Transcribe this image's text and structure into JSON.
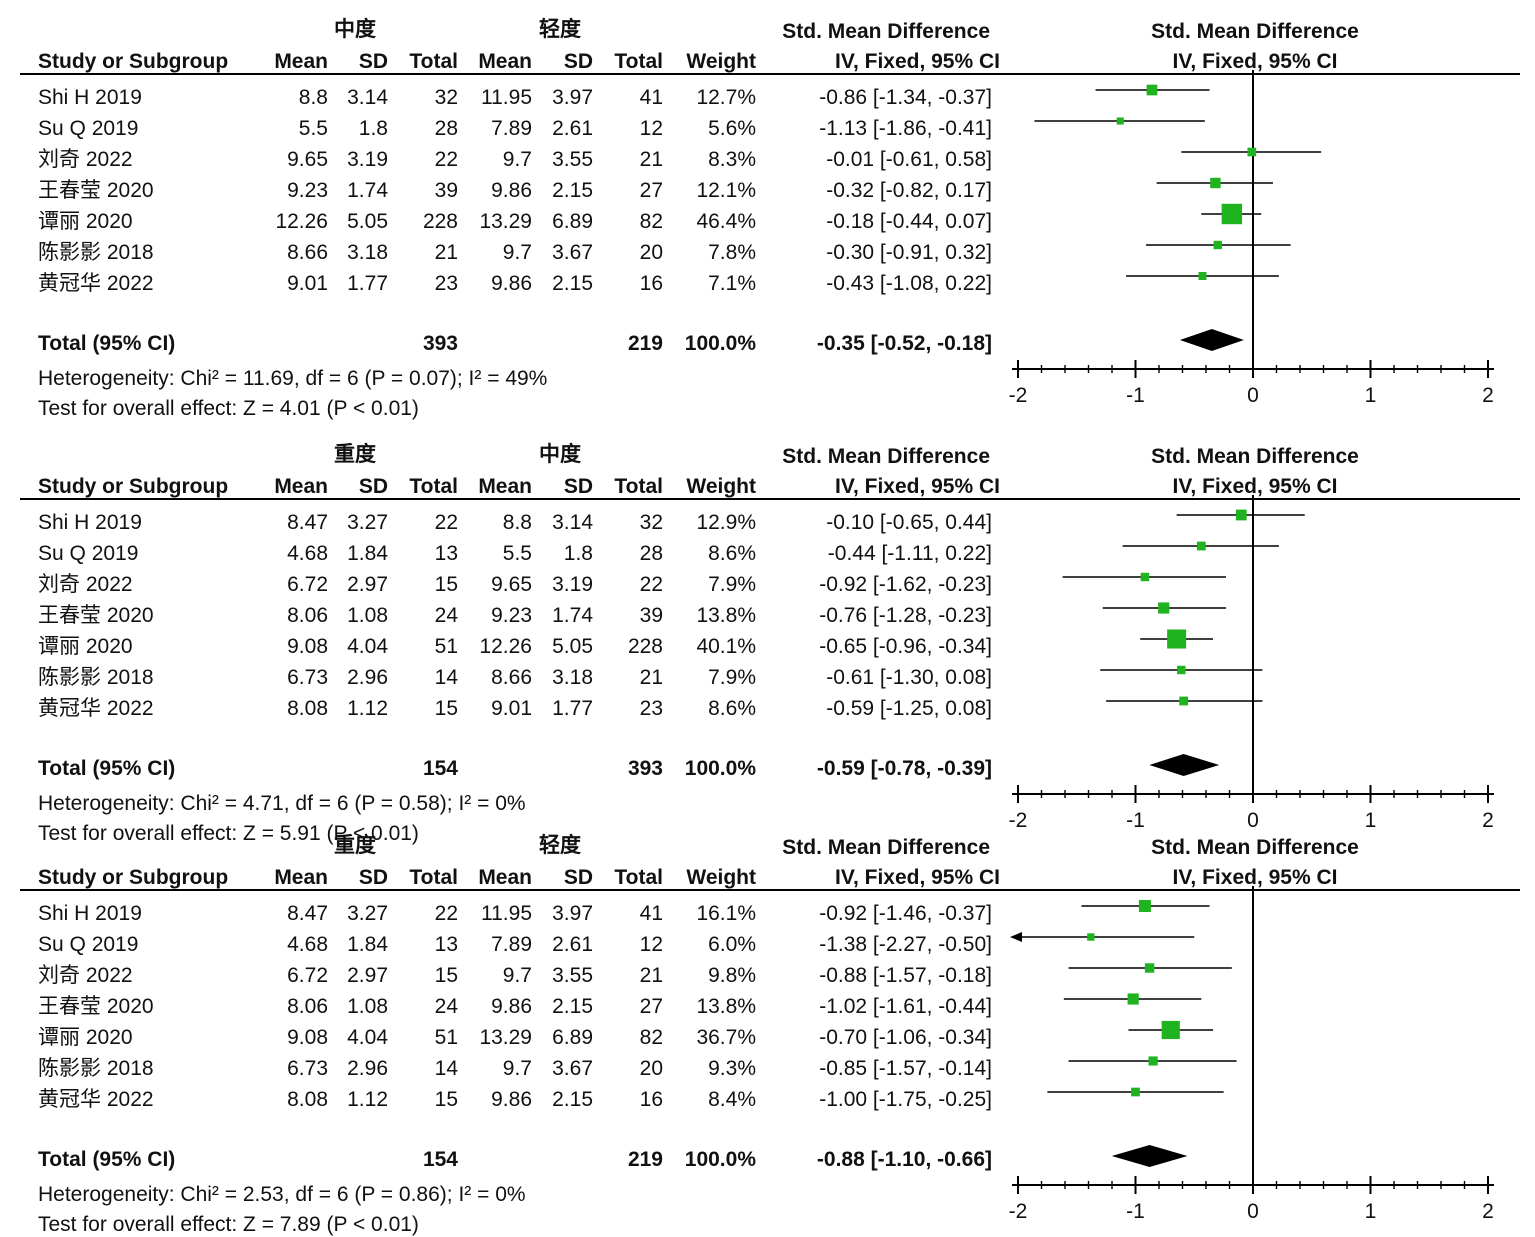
{
  "labels": {
    "study_col": "Study or Subgroup",
    "mean": "Mean",
    "sd": "SD",
    "total": "Total",
    "weight": "Weight",
    "effect_title": "Std. Mean Difference",
    "effect_sub": "IV, Fixed, 95% CI",
    "total_row": "Total (95% CI)"
  },
  "colors": {
    "marker": "#1fb31f",
    "line": "#000000",
    "diamond": "#000000"
  },
  "chart_data": [
    {
      "type": "forest",
      "group1": "中度",
      "group2": "轻度",
      "xlim": [
        -2,
        2
      ],
      "ticks": [
        "-2",
        "-1",
        "0",
        "1",
        "2"
      ],
      "rows": [
        {
          "study": "Shi H 2019",
          "m1": "8.8",
          "sd1": "3.14",
          "n1": "32",
          "m2": "11.95",
          "sd2": "3.97",
          "n2": "41",
          "weight": "12.7%",
          "ci": "-0.86 [-1.34, -0.37]",
          "est": -0.86,
          "lo": -1.34,
          "hi": -0.37,
          "w": 12.7
        },
        {
          "study": "Su Q 2019",
          "m1": "5.5",
          "sd1": "1.8",
          "n1": "28",
          "m2": "7.89",
          "sd2": "2.61",
          "n2": "12",
          "weight": "5.6%",
          "ci": "-1.13 [-1.86, -0.41]",
          "est": -1.13,
          "lo": -1.86,
          "hi": -0.41,
          "w": 5.6
        },
        {
          "study": "刘奇 2022",
          "m1": "9.65",
          "sd1": "3.19",
          "n1": "22",
          "m2": "9.7",
          "sd2": "3.55",
          "n2": "21",
          "weight": "8.3%",
          "ci": "-0.01 [-0.61, 0.58]",
          "est": -0.01,
          "lo": -0.61,
          "hi": 0.58,
          "w": 8.3
        },
        {
          "study": "王春莹 2020",
          "m1": "9.23",
          "sd1": "1.74",
          "n1": "39",
          "m2": "9.86",
          "sd2": "2.15",
          "n2": "27",
          "weight": "12.1%",
          "ci": "-0.32 [-0.82, 0.17]",
          "est": -0.32,
          "lo": -0.82,
          "hi": 0.17,
          "w": 12.1
        },
        {
          "study": "谭丽 2020",
          "m1": "12.26",
          "sd1": "5.05",
          "n1": "228",
          "m2": "13.29",
          "sd2": "6.89",
          "n2": "82",
          "weight": "46.4%",
          "ci": "-0.18 [-0.44, 0.07]",
          "est": -0.18,
          "lo": -0.44,
          "hi": 0.07,
          "w": 46.4
        },
        {
          "study": "陈影影 2018",
          "m1": "8.66",
          "sd1": "3.18",
          "n1": "21",
          "m2": "9.7",
          "sd2": "3.67",
          "n2": "20",
          "weight": "7.8%",
          "ci": "-0.30 [-0.91, 0.32]",
          "est": -0.3,
          "lo": -0.91,
          "hi": 0.32,
          "w": 7.8
        },
        {
          "study": "黄冠华 2022",
          "m1": "9.01",
          "sd1": "1.77",
          "n1": "23",
          "m2": "9.86",
          "sd2": "2.15",
          "n2": "16",
          "weight": "7.1%",
          "ci": "-0.43 [-1.08, 0.22]",
          "est": -0.43,
          "lo": -1.08,
          "hi": 0.22,
          "w": 7.1
        }
      ],
      "total": {
        "n1": "393",
        "n2": "219",
        "weight": "100.0%",
        "ci": "-0.35 [-0.52, -0.18]",
        "est": -0.35,
        "lo": -0.52,
        "hi": -0.18
      },
      "heterogeneity": "Heterogeneity: Chi² = 11.69, df = 6 (P = 0.07); I² = 49%",
      "overall": "Test for overall effect: Z = 4.01 (P < 0.01)"
    },
    {
      "type": "forest",
      "group1": "重度",
      "group2": "中度",
      "xlim": [
        -2,
        2
      ],
      "ticks": [
        "-2",
        "-1",
        "0",
        "1",
        "2"
      ],
      "rows": [
        {
          "study": "Shi H 2019",
          "m1": "8.47",
          "sd1": "3.27",
          "n1": "22",
          "m2": "8.8",
          "sd2": "3.14",
          "n2": "32",
          "weight": "12.9%",
          "ci": "-0.10 [-0.65, 0.44]",
          "est": -0.1,
          "lo": -0.65,
          "hi": 0.44,
          "w": 12.9
        },
        {
          "study": "Su Q 2019",
          "m1": "4.68",
          "sd1": "1.84",
          "n1": "13",
          "m2": "5.5",
          "sd2": "1.8",
          "n2": "28",
          "weight": "8.6%",
          "ci": "-0.44 [-1.11, 0.22]",
          "est": -0.44,
          "lo": -1.11,
          "hi": 0.22,
          "w": 8.6
        },
        {
          "study": "刘奇 2022",
          "m1": "6.72",
          "sd1": "2.97",
          "n1": "15",
          "m2": "9.65",
          "sd2": "3.19",
          "n2": "22",
          "weight": "7.9%",
          "ci": "-0.92 [-1.62, -0.23]",
          "est": -0.92,
          "lo": -1.62,
          "hi": -0.23,
          "w": 7.9
        },
        {
          "study": "王春莹 2020",
          "m1": "8.06",
          "sd1": "1.08",
          "n1": "24",
          "m2": "9.23",
          "sd2": "1.74",
          "n2": "39",
          "weight": "13.8%",
          "ci": "-0.76 [-1.28, -0.23]",
          "est": -0.76,
          "lo": -1.28,
          "hi": -0.23,
          "w": 13.8
        },
        {
          "study": "谭丽 2020",
          "m1": "9.08",
          "sd1": "4.04",
          "n1": "51",
          "m2": "12.26",
          "sd2": "5.05",
          "n2": "228",
          "weight": "40.1%",
          "ci": "-0.65 [-0.96, -0.34]",
          "est": -0.65,
          "lo": -0.96,
          "hi": -0.34,
          "w": 40.1
        },
        {
          "study": "陈影影 2018",
          "m1": "6.73",
          "sd1": "2.96",
          "n1": "14",
          "m2": "8.66",
          "sd2": "3.18",
          "n2": "21",
          "weight": "7.9%",
          "ci": "-0.61 [-1.30, 0.08]",
          "est": -0.61,
          "lo": -1.3,
          "hi": 0.08,
          "w": 7.9
        },
        {
          "study": "黄冠华 2022",
          "m1": "8.08",
          "sd1": "1.12",
          "n1": "15",
          "m2": "9.01",
          "sd2": "1.77",
          "n2": "23",
          "weight": "8.6%",
          "ci": "-0.59 [-1.25, 0.08]",
          "est": -0.59,
          "lo": -1.25,
          "hi": 0.08,
          "w": 8.6
        }
      ],
      "total": {
        "n1": "154",
        "n2": "393",
        "weight": "100.0%",
        "ci": "-0.59 [-0.78, -0.39]",
        "est": -0.59,
        "lo": -0.78,
        "hi": -0.39
      },
      "heterogeneity": "Heterogeneity: Chi² = 4.71, df = 6 (P = 0.58); I² = 0%",
      "overall": "Test for overall effect: Z = 5.91 (P < 0.01)"
    },
    {
      "type": "forest",
      "group1": "重度",
      "group2": "轻度",
      "xlim": [
        -2,
        2
      ],
      "ticks": [
        "-2",
        "-1",
        "0",
        "1",
        "2"
      ],
      "rows": [
        {
          "study": "Shi H 2019",
          "m1": "8.47",
          "sd1": "3.27",
          "n1": "22",
          "m2": "11.95",
          "sd2": "3.97",
          "n2": "41",
          "weight": "16.1%",
          "ci": "-0.92 [-1.46, -0.37]",
          "est": -0.92,
          "lo": -1.46,
          "hi": -0.37,
          "w": 16.1
        },
        {
          "study": "Su Q 2019",
          "m1": "4.68",
          "sd1": "1.84",
          "n1": "13",
          "m2": "7.89",
          "sd2": "2.61",
          "n2": "12",
          "weight": "6.0%",
          "ci": "-1.38 [-2.27, -0.50]",
          "est": -1.38,
          "lo": -2.27,
          "hi": -0.5,
          "w": 6.0
        },
        {
          "study": "刘奇 2022",
          "m1": "6.72",
          "sd1": "2.97",
          "n1": "15",
          "m2": "9.7",
          "sd2": "3.55",
          "n2": "21",
          "weight": "9.8%",
          "ci": "-0.88 [-1.57, -0.18]",
          "est": -0.88,
          "lo": -1.57,
          "hi": -0.18,
          "w": 9.8
        },
        {
          "study": "王春莹 2020",
          "m1": "8.06",
          "sd1": "1.08",
          "n1": "24",
          "m2": "9.86",
          "sd2": "2.15",
          "n2": "27",
          "weight": "13.8%",
          "ci": "-1.02 [-1.61, -0.44]",
          "est": -1.02,
          "lo": -1.61,
          "hi": -0.44,
          "w": 13.8
        },
        {
          "study": "谭丽 2020",
          "m1": "9.08",
          "sd1": "4.04",
          "n1": "51",
          "m2": "13.29",
          "sd2": "6.89",
          "n2": "82",
          "weight": "36.7%",
          "ci": "-0.70 [-1.06, -0.34]",
          "est": -0.7,
          "lo": -1.06,
          "hi": -0.34,
          "w": 36.7
        },
        {
          "study": "陈影影 2018",
          "m1": "6.73",
          "sd1": "2.96",
          "n1": "14",
          "m2": "9.7",
          "sd2": "3.67",
          "n2": "20",
          "weight": "9.3%",
          "ci": "-0.85 [-1.57, -0.14]",
          "est": -0.85,
          "lo": -1.57,
          "hi": -0.14,
          "w": 9.3
        },
        {
          "study": "黄冠华 2022",
          "m1": "8.08",
          "sd1": "1.12",
          "n1": "15",
          "m2": "9.86",
          "sd2": "2.15",
          "n2": "16",
          "weight": "8.4%",
          "ci": "-1.00 [-1.75, -0.25]",
          "est": -1.0,
          "lo": -1.75,
          "hi": -0.25,
          "w": 8.4
        }
      ],
      "total": {
        "n1": "154",
        "n2": "219",
        "weight": "100.0%",
        "ci": "-0.88 [-1.10, -0.66]",
        "est": -0.88,
        "lo": -1.1,
        "hi": -0.66
      },
      "heterogeneity": "Heterogeneity: Chi² = 2.53, df = 6 (P = 0.86); I² = 0%",
      "overall": "Test for overall effect: Z = 7.89 (P < 0.01)"
    }
  ]
}
